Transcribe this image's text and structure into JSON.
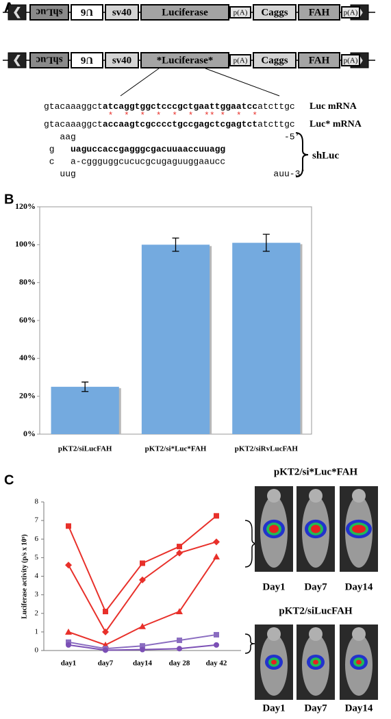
{
  "panels": {
    "a": "A",
    "b": "B",
    "c": "C"
  },
  "constructs": [
    {
      "elements": [
        "shLuc",
        "U6",
        "sv40",
        "Luciferase",
        "p(A)",
        "Caggs",
        "FAH",
        "p(A)"
      ]
    },
    {
      "elements": [
        "shLuc",
        "U6",
        "sv40",
        "*Luciferase*",
        "p(A)",
        "Caggs",
        "FAH",
        "p(A)"
      ]
    }
  ],
  "sequences": {
    "luc": {
      "prefix": "gtacaaaggct",
      "core": "atcaggtggctcccgctgaattggaatcc",
      "suffix": "atcttgc",
      "label": "Luc mRNA"
    },
    "mismatches": " *  *  *  *  *  *  ** *  *  *",
    "luc_star": {
      "prefix": "gtacaaaggct",
      "core": "accaagtcgcccctgccgagctcgagtct",
      "suffix": "atcttgc",
      "label": "Luc* mRNA"
    },
    "hairpin": {
      "loop_top": "aag",
      "end_top": "-5’",
      "g": "g",
      "guide": "uaguccaccgagggcgacuuaaccuuagg",
      "c": "c",
      "passenger": "a-cgggugg​cucucgcugaguuggaaucc",
      "loop_bottom": "uug",
      "end_bottom": "auu-3’",
      "label": "shLuc"
    }
  },
  "chart_data": [
    {
      "type": "bar",
      "categories": [
        "pKT2/siLucFAH",
        "pKT2/si*Luc*FAH",
        "pKT2/siRvLucFAH"
      ],
      "values": [
        25,
        100,
        101
      ],
      "errors": [
        2.5,
        3.5,
        4.5
      ],
      "color": "#74aadf",
      "ylim": [
        0,
        120
      ],
      "yticks": [
        {
          "value": 0,
          "label": "0%"
        },
        {
          "value": 20,
          "label": "20%"
        },
        {
          "value": 40,
          "label": "40%"
        },
        {
          "value": 60,
          "label": "60%"
        },
        {
          "value": 80,
          "label": "80%"
        },
        {
          "value": 100,
          "label": "100%"
        },
        {
          "value": 120,
          "label": "120%"
        }
      ]
    },
    {
      "type": "line",
      "y_label": "Luciferase activity (p/s x 10⁹)",
      "categories": [
        "day1",
        "day7",
        "day14",
        "day 28",
        "day 42"
      ],
      "ylim": [
        0,
        8
      ],
      "yticks": [
        0,
        1,
        2,
        3,
        4,
        5,
        6,
        7,
        8
      ],
      "series": [
        {
          "color": "#e8302a",
          "marker": "square",
          "values": [
            6.7,
            2.1,
            4.7,
            5.6,
            7.25
          ]
        },
        {
          "color": "#e8302a",
          "marker": "diamond",
          "values": [
            4.6,
            1.0,
            3.8,
            5.25,
            5.85
          ]
        },
        {
          "color": "#e8302a",
          "marker": "triangle",
          "values": [
            1.0,
            0.3,
            1.3,
            2.1,
            5.05
          ]
        },
        {
          "color": "#8a6cc0",
          "marker": "square",
          "values": [
            0.45,
            0.1,
            0.25,
            0.55,
            0.85
          ]
        },
        {
          "color": "#7b4fb5",
          "marker": "circle",
          "values": [
            0.3,
            0.02,
            0.05,
            0.1,
            0.3
          ]
        }
      ]
    }
  ],
  "imaging": [
    {
      "title": "pKT2/si*Luc*FAH",
      "days": [
        "Day1",
        "Day7",
        "Day14"
      ]
    },
    {
      "title": "pKT2/siLucFAH",
      "days": [
        "Day1",
        "Day7",
        "Day14"
      ]
    }
  ]
}
